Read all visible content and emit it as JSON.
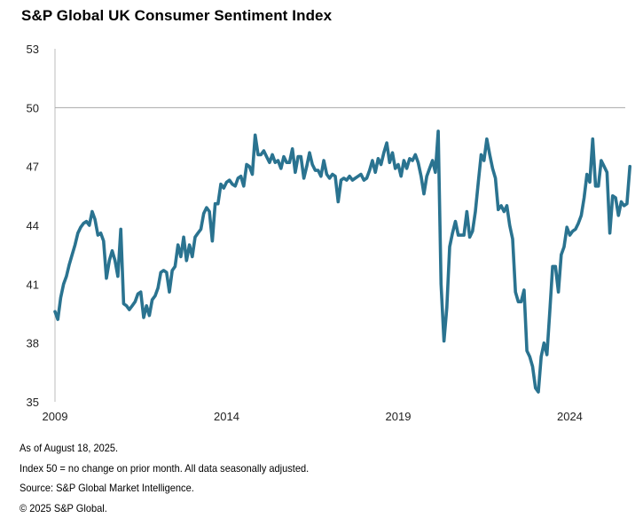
{
  "chart_data": {
    "type": "line",
    "title": "S&P Global UK Consumer Sentiment Index",
    "xlabel": "",
    "ylabel": "",
    "ylim": [
      35,
      53
    ],
    "yticks": [
      35,
      38,
      41,
      44,
      47,
      50,
      53
    ],
    "xticks": [
      {
        "label": "2009",
        "month_index": 0
      },
      {
        "label": "2014",
        "month_index": 60
      },
      {
        "label": "2019",
        "month_index": 120
      },
      {
        "label": "2024",
        "month_index": 180
      }
    ],
    "xlim_months": [
      0,
      198
    ],
    "reference_line": 50,
    "grid": false,
    "legend": "none",
    "line_color": "#2a7390",
    "start": "2009-01",
    "frequency": "monthly",
    "series": [
      {
        "name": "UK Consumer Sentiment Index",
        "values": [
          39.6,
          39.2,
          40.3,
          41.0,
          41.4,
          42.0,
          42.5,
          43.0,
          43.6,
          43.9,
          44.1,
          44.2,
          44.0,
          44.7,
          44.3,
          43.5,
          43.6,
          43.2,
          41.3,
          42.2,
          42.7,
          42.2,
          41.4,
          43.8,
          40.0,
          39.9,
          39.7,
          39.9,
          40.1,
          40.5,
          40.6,
          39.3,
          39.9,
          39.4,
          40.2,
          40.4,
          40.8,
          41.6,
          41.7,
          41.6,
          40.6,
          41.7,
          41.9,
          43.0,
          42.4,
          43.4,
          42.2,
          43.0,
          42.4,
          43.4,
          43.6,
          43.8,
          44.6,
          44.9,
          44.7,
          43.2,
          45.1,
          45.1,
          46.1,
          45.9,
          46.2,
          46.3,
          46.1,
          46.0,
          46.4,
          46.5,
          46.0,
          47.1,
          47.0,
          46.6,
          48.6,
          47.6,
          47.6,
          47.8,
          47.5,
          47.2,
          47.6,
          47.2,
          47.3,
          46.9,
          47.5,
          47.2,
          47.2,
          47.9,
          46.7,
          47.5,
          47.5,
          46.4,
          47.0,
          47.7,
          47.1,
          46.8,
          46.8,
          46.5,
          47.3,
          46.6,
          46.4,
          46.6,
          46.5,
          45.2,
          46.3,
          46.4,
          46.3,
          46.5,
          46.3,
          46.4,
          46.5,
          46.6,
          46.3,
          46.4,
          46.8,
          47.3,
          46.7,
          47.4,
          47.1,
          47.7,
          48.2,
          47.2,
          47.7,
          46.9,
          47.1,
          46.5,
          47.3,
          46.9,
          47.4,
          47.3,
          47.6,
          47.2,
          46.5,
          45.6,
          46.5,
          46.9,
          47.3,
          46.7,
          48.8,
          41.0,
          38.1,
          39.8,
          42.9,
          43.6,
          44.2,
          43.5,
          43.5,
          43.5,
          44.7,
          43.4,
          43.7,
          44.7,
          46.2,
          47.6,
          47.3,
          48.4,
          47.6,
          46.9,
          46.4,
          44.8,
          45.0,
          44.7,
          45.0,
          44.0,
          43.3,
          40.6,
          40.1,
          40.1,
          40.7,
          37.6,
          37.3,
          36.8,
          35.7,
          35.5,
          37.3,
          38.0,
          37.4,
          39.6,
          41.9,
          41.9,
          40.6,
          42.5,
          42.9,
          43.9,
          43.5,
          43.7,
          43.8,
          44.1,
          44.5,
          45.4,
          46.6,
          46.2,
          48.4,
          46.0,
          46.0,
          47.3,
          47.0,
          46.7,
          43.6,
          45.5,
          45.4,
          44.5,
          45.2,
          45.0,
          45.1,
          47.0
        ]
      }
    ]
  },
  "notes": [
    "As of August 18, 2025.",
    "Index 50 = no change on prior month. All data seasonally adjusted.",
    "Source: S&P Global Market Intelligence.",
    "© 2025 S&P Global."
  ]
}
